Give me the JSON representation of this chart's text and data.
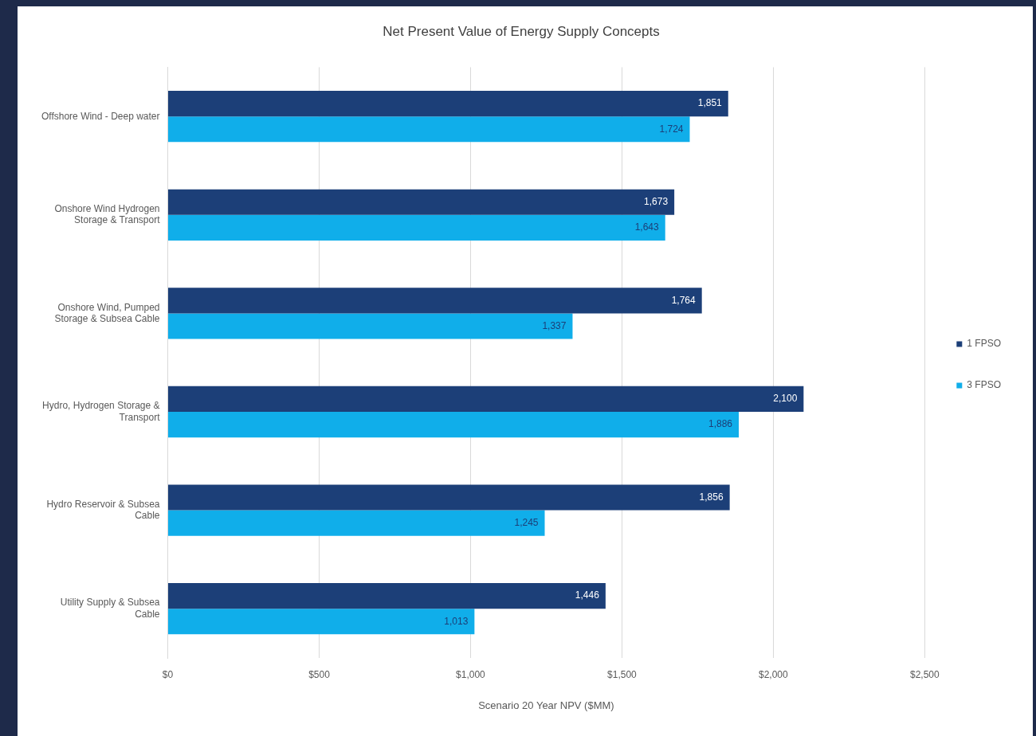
{
  "chart_data": {
    "type": "bar",
    "orientation": "horizontal",
    "title": "Net Present Value of Energy Supply Concepts",
    "xlabel": "Scenario 20 Year NPV ($MM)",
    "categories": [
      "Offshore Wind - Deep water",
      "Onshore Wind Hydrogen Storage & Transport",
      "Onshore Wind, Pumped Storage & Subsea Cable",
      "Hydro, Hydrogen Storage & Transport",
      "Hydro Reservoir & Subsea Cable",
      "Utility Supply & Subsea Cable"
    ],
    "series": [
      {
        "name": "1 FPSO",
        "color": "#1c3f78",
        "values": [
          1851,
          1673,
          1764,
          2100,
          1856,
          1446
        ],
        "value_labels": [
          "1,851",
          "1,673",
          "1,764",
          "2,100",
          "1,856",
          "1,446"
        ]
      },
      {
        "name": "3 FPSO",
        "color": "#10aeea",
        "values": [
          1724,
          1643,
          1337,
          1886,
          1245,
          1013
        ],
        "value_labels": [
          "1,724",
          "1,643",
          "1,337",
          "1,886",
          "1,245",
          "1,013"
        ]
      }
    ],
    "xlim": [
      0,
      2500
    ],
    "xticks": [
      {
        "value": 0,
        "label": "$0"
      },
      {
        "value": 500,
        "label": "$500"
      },
      {
        "value": 1000,
        "label": "$1,000"
      },
      {
        "value": 1500,
        "label": "$1,500"
      },
      {
        "value": 2000,
        "label": "$2,000"
      },
      {
        "value": 2500,
        "label": "$2,500"
      }
    ],
    "grid": "x",
    "legend": "right"
  }
}
